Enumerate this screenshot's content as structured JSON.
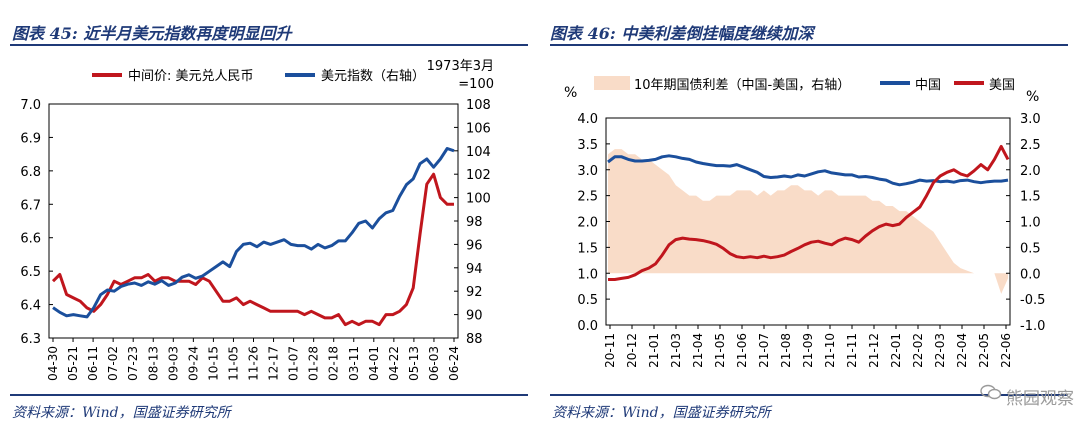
{
  "panel1": {
    "title": "图表 45:  近半月美元指数再度明显回升",
    "source": "资料来源：Wind，国盛证券研究所"
  },
  "panel2": {
    "title": "图表 46:  中美利差倒挂幅度继续加深",
    "source": "资料来源：Wind，国盛证券研究所"
  },
  "watermark": "熊园观察",
  "colors": {
    "red": "#c0161d",
    "blue": "#1b4f9c",
    "fill": "#f9dcc8",
    "navy": "#1f3a78"
  },
  "chart_data": [
    {
      "type": "line",
      "y_unit_note": "1973年3月=100",
      "ylim_left": [
        6.3,
        7.0
      ],
      "yticks_left": [
        "6.3",
        "6.4",
        "6.5",
        "6.6",
        "6.7",
        "6.8",
        "6.9",
        "7.0"
      ],
      "ylim_right": [
        88,
        108
      ],
      "yticks_right": [
        "88",
        "90",
        "92",
        "94",
        "96",
        "98",
        "100",
        "102",
        "104",
        "106",
        "108"
      ],
      "x_ticks": [
        "04-30",
        "05-21",
        "06-11",
        "07-02",
        "07-23",
        "08-13",
        "09-03",
        "09-24",
        "10-15",
        "11-05",
        "11-26",
        "12-17",
        "01-07",
        "01-28",
        "02-18",
        "03-11",
        "04-01",
        "04-22",
        "05-13",
        "06-03",
        "06-24"
      ],
      "x_count": 60,
      "series": [
        {
          "name": "中间价: 美元兑人民币",
          "axis": "left",
          "color": "#c0161d",
          "values": [
            6.47,
            6.49,
            6.43,
            6.42,
            6.41,
            6.39,
            6.38,
            6.4,
            6.43,
            6.47,
            6.46,
            6.47,
            6.48,
            6.48,
            6.49,
            6.47,
            6.48,
            6.48,
            6.47,
            6.47,
            6.47,
            6.46,
            6.48,
            6.47,
            6.44,
            6.41,
            6.41,
            6.42,
            6.4,
            6.41,
            6.4,
            6.39,
            6.38,
            6.38,
            6.38,
            6.38,
            6.38,
            6.37,
            6.38,
            6.37,
            6.36,
            6.36,
            6.37,
            6.34,
            6.35,
            6.34,
            6.35,
            6.35,
            6.34,
            6.37,
            6.37,
            6.38,
            6.4,
            6.45,
            6.61,
            6.76,
            6.79,
            6.72,
            6.7,
            6.7
          ]
        },
        {
          "name": "美元指数（右轴）",
          "axis": "right",
          "color": "#1b4f9c",
          "values": [
            90.6,
            90.2,
            89.9,
            90.0,
            89.9,
            89.8,
            90.6,
            91.7,
            92.1,
            92.0,
            92.4,
            92.6,
            92.7,
            92.5,
            92.8,
            92.6,
            92.9,
            92.5,
            92.7,
            93.2,
            93.4,
            93.1,
            93.3,
            93.7,
            94.1,
            94.5,
            94.1,
            95.4,
            96.0,
            96.1,
            95.8,
            96.2,
            96.0,
            96.2,
            96.4,
            96.0,
            95.9,
            95.9,
            95.6,
            96.0,
            95.7,
            95.9,
            96.3,
            96.3,
            97.0,
            97.8,
            98.0,
            97.4,
            98.2,
            98.7,
            98.9,
            100.1,
            101.1,
            101.6,
            102.9,
            103.3,
            102.6,
            103.3,
            104.2,
            104.0
          ]
        }
      ]
    },
    {
      "type": "line",
      "ylabel_left": "%",
      "ylabel_right": "%",
      "ylim_left": [
        0.0,
        4.0
      ],
      "yticks_left": [
        "0.0",
        "0.5",
        "1.0",
        "1.5",
        "2.0",
        "2.5",
        "3.0",
        "3.5",
        "4.0"
      ],
      "ylim_right": [
        -1.0,
        3.0
      ],
      "yticks_right": [
        "-1.0",
        "-0.5",
        "0.0",
        "0.5",
        "1.0",
        "1.5",
        "2.0",
        "2.5",
        "3.0"
      ],
      "x_ticks": [
        "20-11",
        "20-12",
        "21-01",
        "21-03",
        "21-04",
        "21-05",
        "21-06",
        "21-07",
        "21-08",
        "21-09",
        "21-10",
        "21-11",
        "21-12",
        "22-01",
        "22-02",
        "22-03",
        "22-04",
        "22-05",
        "22-06"
      ],
      "x_count": 60,
      "series": [
        {
          "name": "10年期国债利差（中国-美国，右轴）",
          "type": "area",
          "axis": "right",
          "color": "#f9dcc8",
          "values": [
            2.3,
            2.4,
            2.4,
            2.3,
            2.3,
            2.2,
            2.2,
            2.1,
            2.0,
            1.9,
            1.7,
            1.6,
            1.5,
            1.5,
            1.4,
            1.4,
            1.5,
            1.5,
            1.5,
            1.6,
            1.6,
            1.6,
            1.5,
            1.6,
            1.5,
            1.6,
            1.6,
            1.7,
            1.7,
            1.6,
            1.6,
            1.5,
            1.6,
            1.6,
            1.5,
            1.5,
            1.5,
            1.5,
            1.5,
            1.4,
            1.4,
            1.3,
            1.3,
            1.2,
            1.2,
            1.1,
            1.0,
            0.9,
            0.8,
            0.6,
            0.4,
            0.2,
            0.1,
            0.05,
            0.0,
            0.0,
            0.0,
            0.0,
            -0.4,
            -0.1
          ]
        },
        {
          "name": "中国",
          "axis": "left",
          "color": "#1b4f9c",
          "values": [
            3.15,
            3.25,
            3.25,
            3.2,
            3.17,
            3.17,
            3.18,
            3.2,
            3.25,
            3.27,
            3.25,
            3.22,
            3.2,
            3.15,
            3.12,
            3.1,
            3.08,
            3.08,
            3.07,
            3.1,
            3.05,
            3.0,
            2.95,
            2.87,
            2.85,
            2.86,
            2.88,
            2.86,
            2.9,
            2.88,
            2.92,
            2.96,
            2.98,
            2.94,
            2.92,
            2.9,
            2.9,
            2.86,
            2.87,
            2.85,
            2.82,
            2.8,
            2.74,
            2.71,
            2.73,
            2.76,
            2.8,
            2.78,
            2.79,
            2.77,
            2.78,
            2.76,
            2.79,
            2.8,
            2.77,
            2.75,
            2.77,
            2.78,
            2.78,
            2.8
          ]
        },
        {
          "name": "美国",
          "axis": "left",
          "color": "#c0161d",
          "values": [
            0.88,
            0.88,
            0.9,
            0.92,
            0.97,
            1.05,
            1.1,
            1.18,
            1.35,
            1.55,
            1.65,
            1.68,
            1.66,
            1.65,
            1.63,
            1.6,
            1.56,
            1.48,
            1.38,
            1.32,
            1.3,
            1.32,
            1.3,
            1.33,
            1.3,
            1.32,
            1.35,
            1.42,
            1.48,
            1.55,
            1.6,
            1.62,
            1.58,
            1.55,
            1.63,
            1.68,
            1.65,
            1.6,
            1.72,
            1.82,
            1.9,
            1.95,
            1.92,
            1.95,
            2.08,
            2.18,
            2.28,
            2.5,
            2.75,
            2.88,
            2.95,
            3.0,
            2.92,
            2.88,
            2.98,
            3.1,
            3.0,
            3.2,
            3.45,
            3.2
          ]
        }
      ]
    }
  ]
}
